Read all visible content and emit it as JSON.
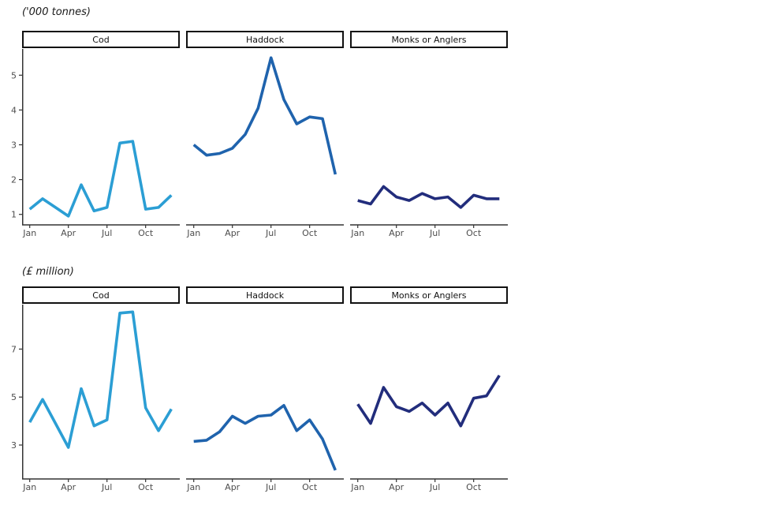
{
  "page": {
    "background": "#ffffff"
  },
  "colors": {
    "cod_line": "#2b9ed4",
    "haddock_line": "#1f63ad",
    "monks_line": "#222d7c",
    "axis": "#333333",
    "tick_text": "#4d4d4d",
    "facet_border": "#111111"
  },
  "chart_data": [
    {
      "type": "line",
      "title": "('000 tonnes)",
      "x": [
        "Jan",
        "Feb",
        "Mar",
        "Apr",
        "May",
        "Jun",
        "Jul",
        "Aug",
        "Sep",
        "Oct",
        "Nov",
        "Dec"
      ],
      "x_tick_labels": [
        "Jan",
        "Apr",
        "Jul",
        "Oct"
      ],
      "x_tick_indices": [
        0,
        3,
        6,
        9
      ],
      "yticks": [
        1,
        2,
        3,
        4,
        5
      ],
      "ylim": [
        0.7,
        5.75
      ],
      "grid": false,
      "legend_position": "none",
      "facets": [
        {
          "label": "Cod",
          "color": "#2b9ed4",
          "values": [
            1.15,
            1.45,
            1.2,
            0.95,
            1.85,
            1.1,
            1.2,
            3.05,
            3.1,
            1.15,
            1.2,
            1.55
          ]
        },
        {
          "label": "Haddock",
          "color": "#1f63ad",
          "values": [
            3.0,
            2.7,
            2.75,
            2.9,
            3.3,
            4.05,
            5.5,
            4.3,
            3.6,
            3.8,
            3.75,
            2.15
          ]
        },
        {
          "label": "Monks or Anglers",
          "color": "#222d7c",
          "values": [
            1.4,
            1.3,
            1.8,
            1.5,
            1.4,
            1.6,
            1.45,
            1.5,
            1.2,
            1.55,
            1.45,
            1.45
          ]
        }
      ]
    },
    {
      "type": "line",
      "title": "(£ million)",
      "x": [
        "Jan",
        "Feb",
        "Mar",
        "Apr",
        "May",
        "Jun",
        "Jul",
        "Aug",
        "Sep",
        "Oct",
        "Nov",
        "Dec"
      ],
      "x_tick_labels": [
        "Jan",
        "Apr",
        "Jul",
        "Oct"
      ],
      "x_tick_indices": [
        0,
        3,
        6,
        9
      ],
      "yticks": [
        3,
        5,
        7
      ],
      "ylim": [
        1.55,
        8.85
      ],
      "grid": false,
      "legend_position": "none",
      "facets": [
        {
          "label": "Cod",
          "color": "#2b9ed4",
          "values": [
            3.95,
            4.9,
            3.9,
            2.9,
            5.35,
            3.8,
            4.05,
            8.5,
            8.55,
            4.55,
            3.6,
            4.5
          ]
        },
        {
          "label": "Haddock",
          "color": "#1f63ad",
          "values": [
            3.15,
            3.2,
            3.55,
            4.2,
            3.9,
            4.2,
            4.25,
            4.65,
            3.6,
            4.05,
            3.25,
            1.95
          ]
        },
        {
          "label": "Monks or Anglers",
          "color": "#222d7c",
          "values": [
            4.7,
            3.9,
            5.4,
            4.6,
            4.4,
            4.75,
            4.25,
            4.75,
            3.8,
            4.95,
            5.05,
            5.9
          ]
        }
      ]
    }
  ]
}
